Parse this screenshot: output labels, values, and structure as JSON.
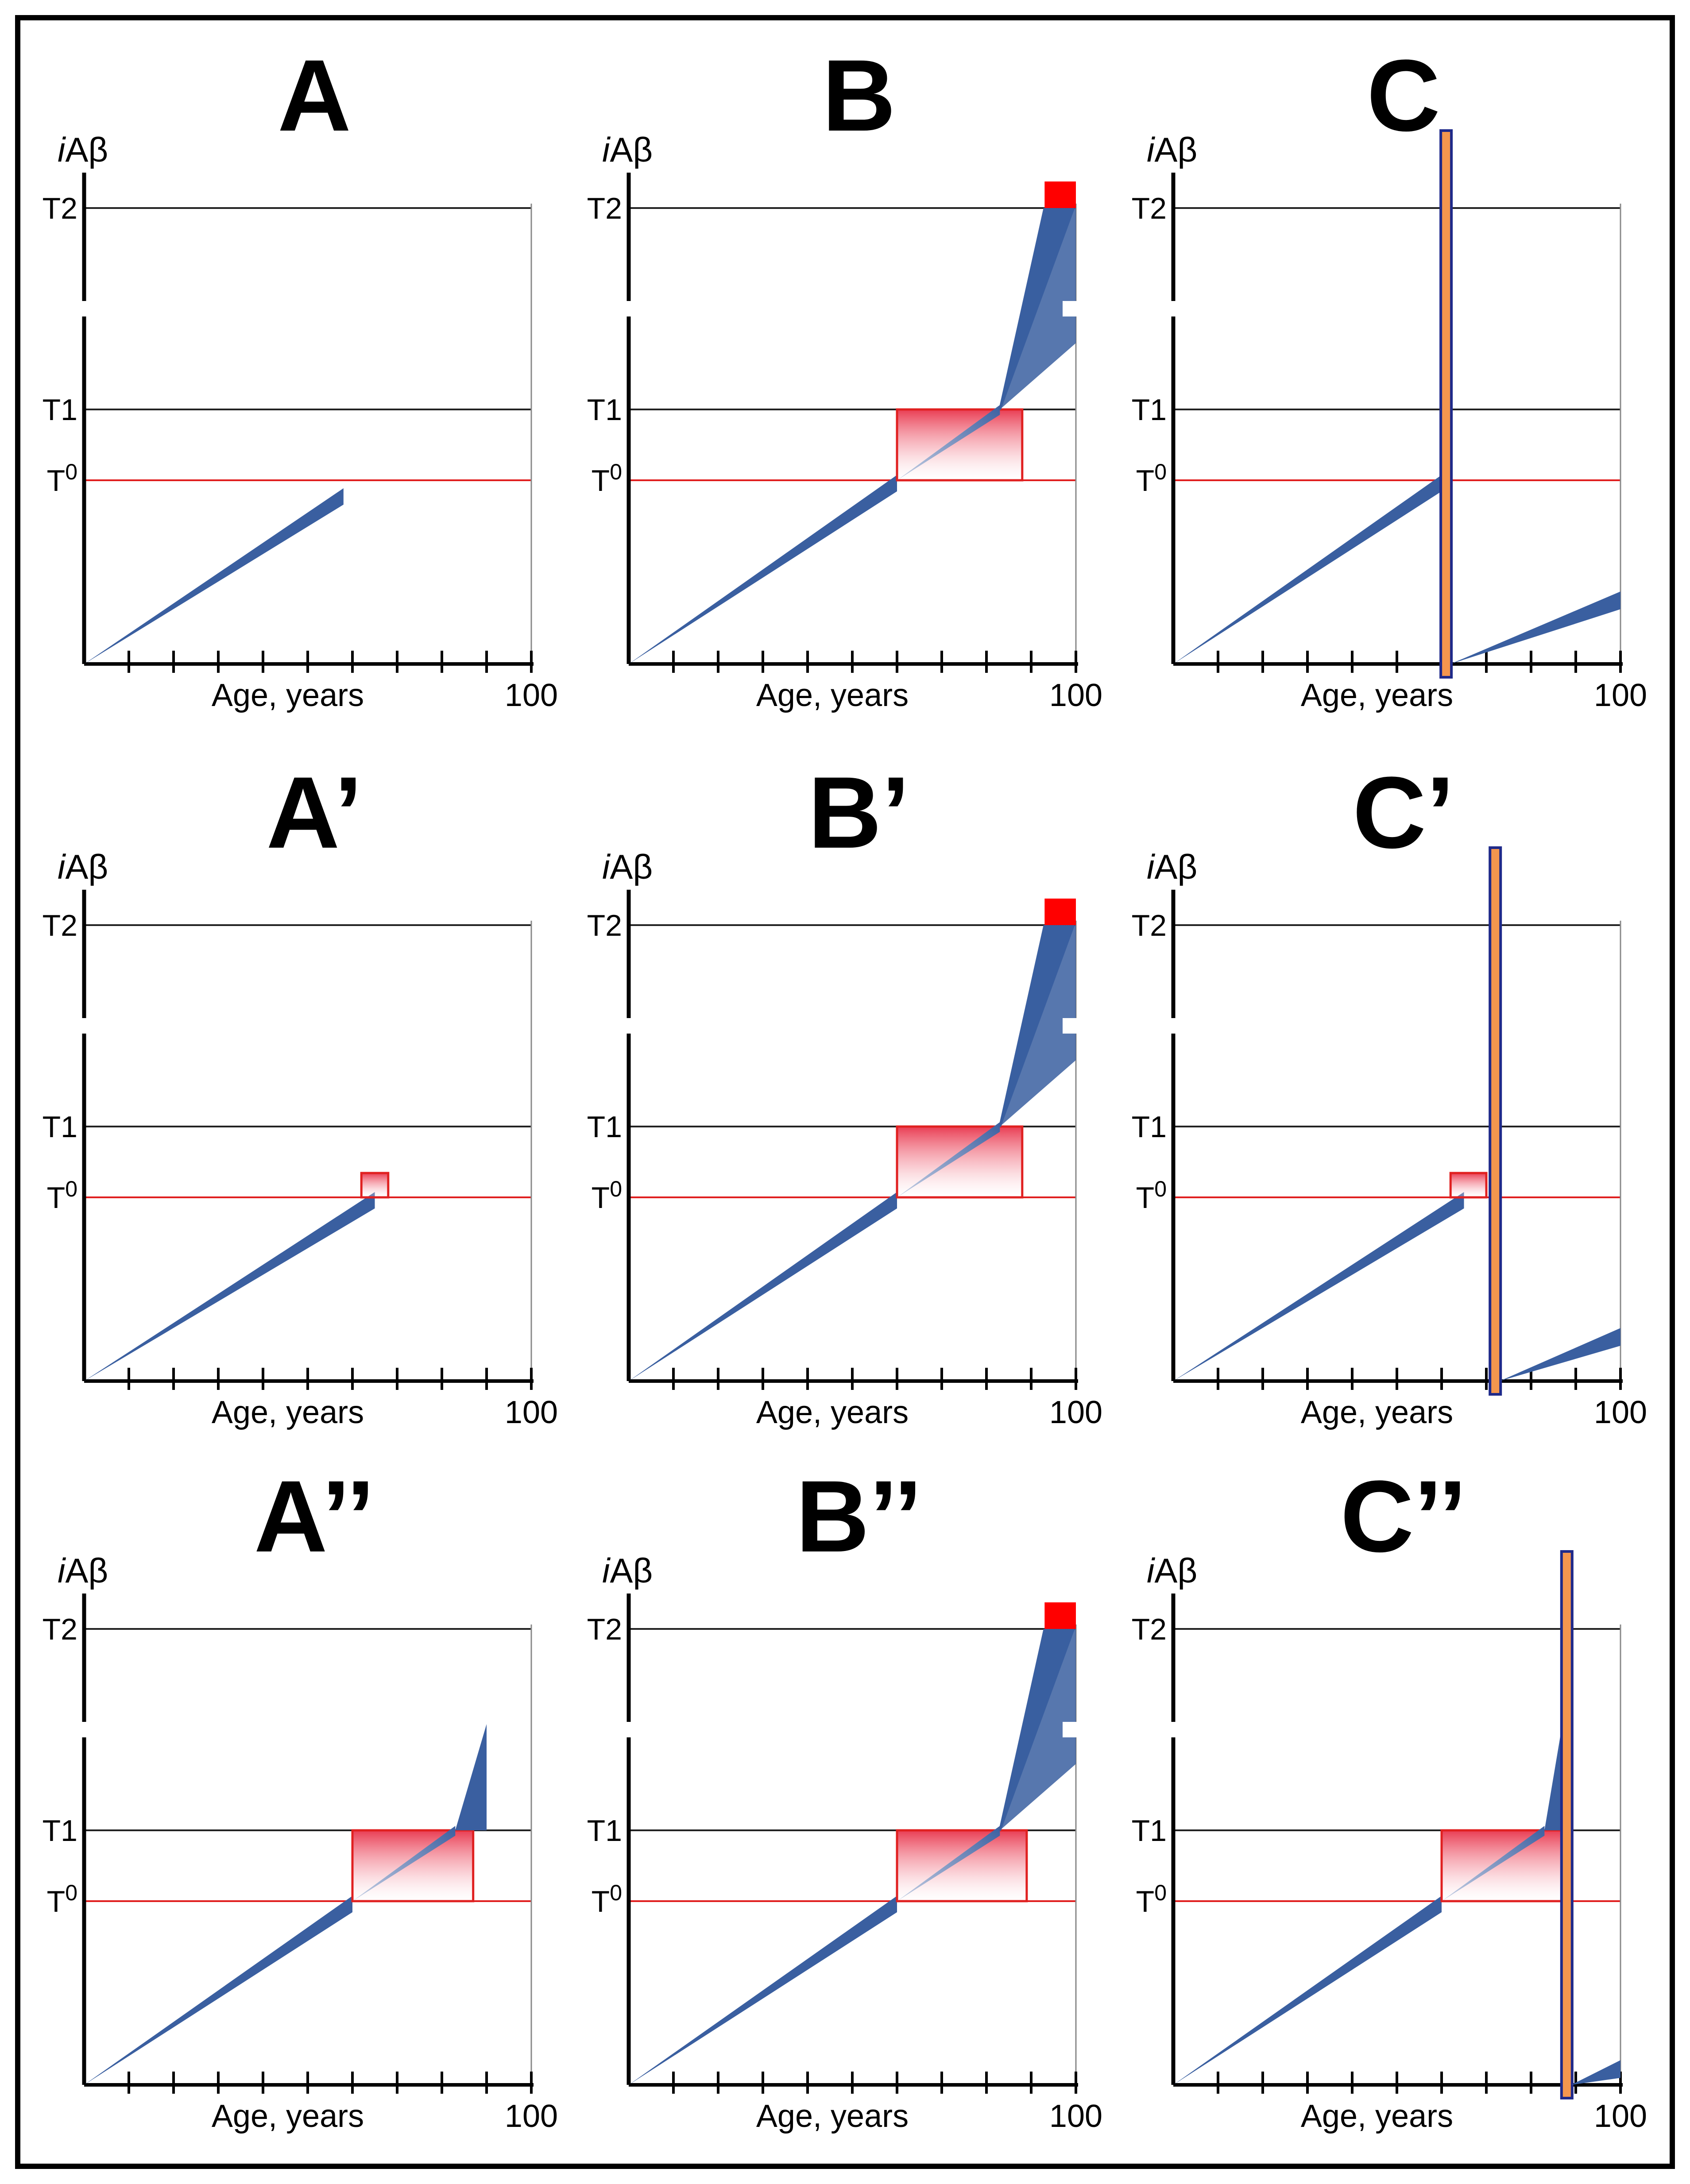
{
  "figure": {
    "description_rows": 3,
    "description_cols": 3,
    "colors": {
      "curve": "#3a5fa0",
      "curve_light": "#c4cee3",
      "threshold_t0": "#e02020",
      "threshold_line": "#222222",
      "red_block": "#ff0000",
      "bar_fill": "#f4964e",
      "bar_border": "#1f2a8a",
      "frame": "#000000"
    }
  },
  "axis_common": {
    "y_label_prefix": "i",
    "y_label_main": "Aβ",
    "t2": "T2",
    "t1": "T1",
    "t0_base": "T",
    "t0_sup": "0",
    "x_label": "Age, years",
    "x_max": "100"
  },
  "panels": [
    {
      "id": "A",
      "title": "A",
      "type": "A",
      "window": "none",
      "drug": false,
      "peak_age": 58,
      "blocks": false
    },
    {
      "id": "B",
      "title": "B",
      "type": "B",
      "window": "large",
      "drug": false,
      "t0_age": 60,
      "t1_age": 83,
      "box_end_age": 88,
      "blocks": true
    },
    {
      "id": "C",
      "title": "C",
      "type": "C",
      "window": "none",
      "drug": true,
      "drug_age": 61,
      "peak_age": 60,
      "blocks": false
    },
    {
      "id": "A1",
      "title": "A’",
      "type": "A",
      "window": "small",
      "drug": false,
      "peak_age": 65,
      "box_end_age": 68,
      "blocks": false
    },
    {
      "id": "B1",
      "title": "B’",
      "type": "B",
      "window": "large",
      "drug": false,
      "t0_age": 60,
      "t1_age": 83,
      "box_end_age": 88,
      "blocks": true
    },
    {
      "id": "C1",
      "title": "C’",
      "type": "C",
      "window": "small",
      "drug": true,
      "drug_age": 72,
      "peak_age": 65,
      "box_end_age": 70,
      "blocks": false
    },
    {
      "id": "A2",
      "title": "A’’",
      "type": "A",
      "window": "large",
      "drug": false,
      "t0_age": 60,
      "t1_age": 83,
      "box_end_age": 87,
      "spike_age": 88,
      "blocks": false
    },
    {
      "id": "B2",
      "title": "B’’",
      "type": "B",
      "window": "large",
      "drug": false,
      "t0_age": 60,
      "t1_age": 83,
      "box_end_age": 89,
      "blocks": true
    },
    {
      "id": "C2",
      "title": "C’’",
      "type": "C",
      "window": "large",
      "drug": true,
      "drug_age": 88,
      "t0_age": 60,
      "t1_age": 83,
      "box_end_age": 88,
      "spike_age": 85,
      "blocks": false
    }
  ]
}
